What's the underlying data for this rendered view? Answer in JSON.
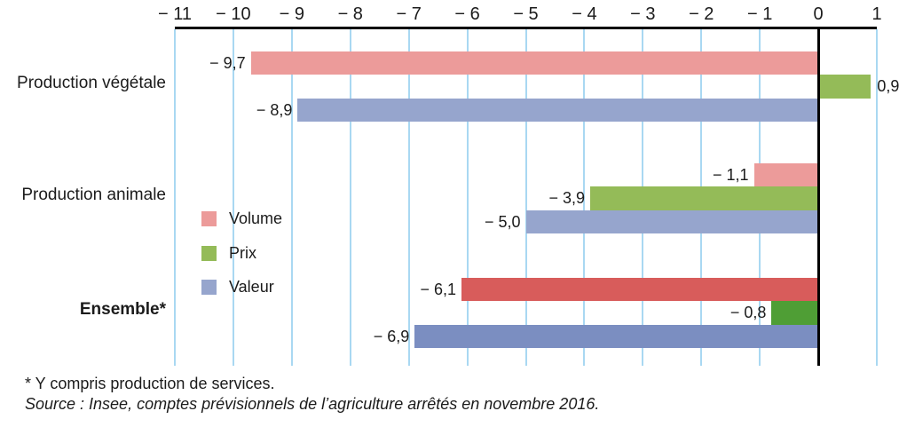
{
  "chart_data": {
    "type": "bar",
    "orientation": "horizontal",
    "title": "",
    "categories": [
      {
        "label": "Production végétale",
        "bold": false
      },
      {
        "label": "Production animale",
        "bold": false
      },
      {
        "label": "Ensemble*",
        "bold": true
      }
    ],
    "series": [
      {
        "name": "Volume",
        "values": [
          -9.7,
          -1.1,
          -6.1
        ],
        "value_labels": [
          "− 9,7",
          "− 1,1",
          "− 6,1"
        ],
        "bar_colors": [
          "#EC9B9A",
          "#EC9B9A",
          "#D85C5B"
        ]
      },
      {
        "name": "Prix",
        "values": [
          0.9,
          -3.9,
          -0.8
        ],
        "value_labels": [
          "0,9",
          "− 3,9",
          "− 0,8"
        ],
        "bar_colors": [
          "#94BB58",
          "#94BB58",
          "#4F9E35"
        ]
      },
      {
        "name": "Valeur",
        "values": [
          -8.9,
          -5.0,
          -6.9
        ],
        "value_labels": [
          "− 8,9",
          "− 5,0",
          "− 6,9"
        ],
        "bar_colors": [
          "#96A5CD",
          "#96A5CD",
          "#7B8EC1"
        ]
      }
    ],
    "xlim": [
      -11,
      1
    ],
    "x_ticks": [
      {
        "value": -11,
        "label": "− 11"
      },
      {
        "value": -10,
        "label": "− 10"
      },
      {
        "value": -9,
        "label": "− 9"
      },
      {
        "value": -8,
        "label": "− 8"
      },
      {
        "value": -7,
        "label": "− 7"
      },
      {
        "value": -6,
        "label": "− 6"
      },
      {
        "value": -5,
        "label": "− 5"
      },
      {
        "value": -4,
        "label": "− 4"
      },
      {
        "value": -3,
        "label": "− 3"
      },
      {
        "value": -2,
        "label": "− 2"
      },
      {
        "value": -1,
        "label": "− 1"
      },
      {
        "value": 0,
        "label": "0"
      },
      {
        "value": 1,
        "label": "1"
      }
    ],
    "grid": true,
    "legend": {
      "position": "inside-left-middle",
      "items": [
        {
          "label": "Volume",
          "color": "#EC9B9A"
        },
        {
          "label": "Prix",
          "color": "#94BB58"
        },
        {
          "label": "Valeur",
          "color": "#96A5CD"
        }
      ]
    }
  },
  "footnotes": {
    "note": "* Y compris production de services.",
    "source": "Source : Insee, comptes prévisionnels de l’agriculture arrêtés en novembre 2016."
  },
  "colors": {
    "axis_line": "#000000",
    "gridline": "#A9D8F2",
    "text": "#1B1B1B"
  }
}
